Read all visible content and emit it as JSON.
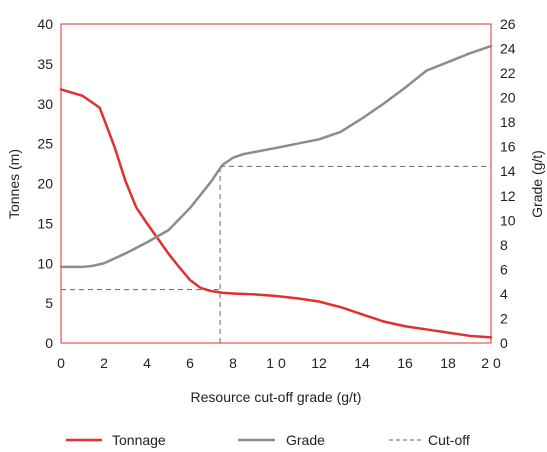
{
  "chart_data": {
    "type": "line",
    "xlabel": "Resource cut-off grade (g/t)",
    "ylabel_left": "Tonnes (m)",
    "ylabel_right": "Grade (g/t)",
    "xlim": [
      0,
      20
    ],
    "ylim_left": [
      0,
      40
    ],
    "ylim_right": [
      0,
      26
    ],
    "x_ticks": [
      "0",
      "2",
      "4",
      "6",
      "8",
      "1 0",
      "12",
      "14",
      "16",
      "18",
      "2 0"
    ],
    "x_tick_values": [
      0,
      2,
      4,
      6,
      8,
      10,
      12,
      14,
      16,
      18,
      20
    ],
    "y_left_ticks": [
      0,
      5,
      10,
      15,
      20,
      25,
      30,
      35,
      40
    ],
    "y_right_ticks": [
      0,
      2,
      4,
      6,
      8,
      10,
      12,
      14,
      16,
      18,
      20,
      22,
      24,
      26
    ],
    "legend_position": "bottom",
    "series": [
      {
        "name": "Tonnage",
        "axis": "left",
        "style": "solid",
        "color": "#e03030",
        "x": [
          0,
          1,
          1.8,
          2.5,
          3,
          3.5,
          4,
          4.5,
          5,
          5.5,
          6,
          6.5,
          7,
          7.5,
          8,
          9,
          10,
          11,
          12,
          13,
          14,
          15,
          16,
          17,
          18,
          19,
          20
        ],
        "y": [
          31.8,
          31,
          29.5,
          24.5,
          20.3,
          17,
          15,
          13.1,
          11.2,
          9.5,
          7.9,
          6.9,
          6.5,
          6.3,
          6.2,
          6.1,
          5.9,
          5.6,
          5.2,
          4.5,
          3.6,
          2.7,
          2.1,
          1.7,
          1.3,
          0.9,
          0.7
        ]
      },
      {
        "name": "Grade",
        "axis": "right",
        "style": "solid",
        "color": "#8c8c8c",
        "x": [
          0,
          1,
          1.5,
          2,
          3,
          4,
          5,
          6,
          7,
          7.5,
          8,
          8.5,
          10,
          12,
          13,
          14,
          15,
          16,
          17,
          18,
          19,
          20
        ],
        "y": [
          6.2,
          6.2,
          6.3,
          6.5,
          7.3,
          8.2,
          9.2,
          11,
          13.2,
          14.5,
          15.1,
          15.4,
          15.9,
          16.6,
          17.2,
          18.3,
          19.5,
          20.8,
          22.2,
          22.9,
          23.6,
          24.2
        ]
      },
      {
        "name": "Cut-off",
        "style": "dashed",
        "color": "#666666",
        "segments": [
          {
            "axis": "left",
            "x": [
              0,
              7.4
            ],
            "y": [
              6.7,
              6.7
            ]
          },
          {
            "axis": "right",
            "x": [
              7.4,
              7.4
            ],
            "y": [
              0,
              14.4
            ]
          },
          {
            "axis": "right",
            "x": [
              7.4,
              20
            ],
            "y": [
              14.4,
              14.4
            ]
          }
        ]
      }
    ]
  }
}
